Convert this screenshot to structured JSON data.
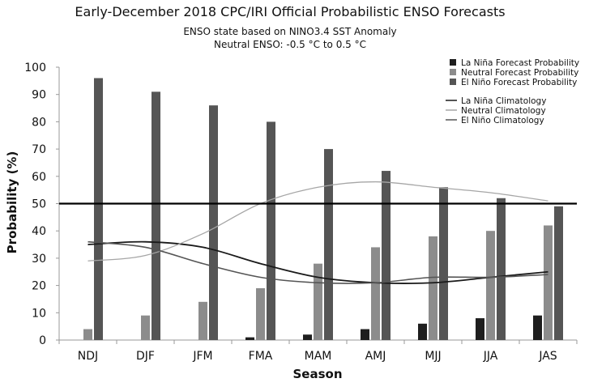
{
  "chart_data": {
    "type": "bar",
    "title": "Early-December 2018 CPC/IRI Official Probabilistic ENSO Forecasts",
    "subtitle_lines": [
      "ENSO state based on NINO3.4 SST Anomaly",
      "Neutral ENSO: -0.5 °C to 0.5 °C"
    ],
    "xlabel": "Season",
    "ylabel": "Probability (%)",
    "ylim": [
      0,
      100
    ],
    "yticks": [
      0,
      10,
      20,
      30,
      40,
      50,
      60,
      70,
      80,
      90,
      100
    ],
    "grid": false,
    "legend_position": "top-right",
    "reference_line": 50,
    "categories": [
      "NDJ",
      "DJF",
      "JFM",
      "FMA",
      "MAM",
      "AMJ",
      "MJJ",
      "JJA",
      "JAS"
    ],
    "series": [
      {
        "name": "La Niña Forecast Probability",
        "color": "#1e1e1e",
        "values": [
          0,
          0,
          0,
          1,
          2,
          4,
          6,
          8,
          9
        ]
      },
      {
        "name": "Neutral Forecast Probability",
        "color": "#8c8c8c",
        "values": [
          4,
          9,
          14,
          19,
          28,
          34,
          38,
          40,
          42
        ]
      },
      {
        "name": "El Niño Forecast Probability",
        "color": "#555555",
        "values": [
          96,
          91,
          86,
          80,
          70,
          62,
          56,
          52,
          49
        ]
      }
    ],
    "climatology": [
      {
        "name": "La Niña Climatology",
        "color": "#1a1a1a",
        "values": [
          35,
          36,
          34,
          28,
          23,
          21,
          21,
          23,
          25
        ]
      },
      {
        "name": "Neutral Climatology",
        "color": "#a6a6a6",
        "values": [
          29,
          31,
          39,
          50,
          56,
          58,
          56,
          54,
          51
        ]
      },
      {
        "name": "El Niño Climatology",
        "color": "#555555",
        "values": [
          36,
          34,
          28,
          23,
          21,
          21,
          23,
          23,
          24
        ]
      }
    ]
  }
}
